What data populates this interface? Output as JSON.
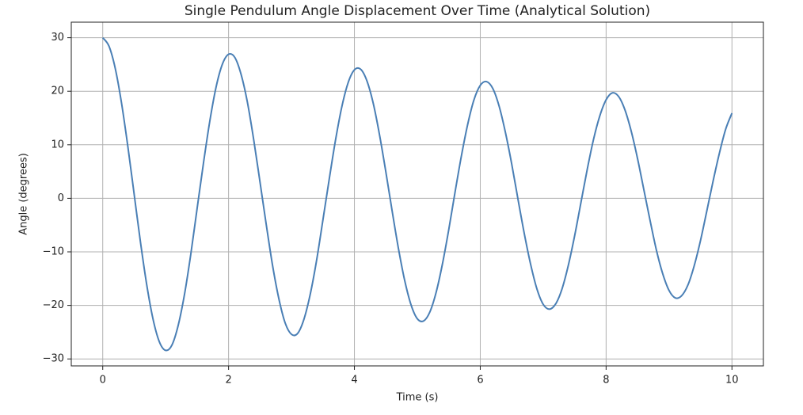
{
  "chart_data": {
    "type": "line",
    "title": "Single Pendulum Angle Displacement Over Time (Analytical Solution)",
    "x_label": "Time (s)",
    "y_label": "Angle (degrees)",
    "x": [
      0,
      0.1,
      0.2,
      0.3,
      0.4,
      0.5,
      0.6,
      0.7,
      0.8,
      0.9,
      1,
      1.1,
      1.2,
      1.3,
      1.4,
      1.5,
      1.6,
      1.7,
      1.8,
      1.9,
      2,
      2.1,
      2.2,
      2.3,
      2.4,
      2.5,
      2.6,
      2.7,
      2.8,
      2.9,
      3,
      3.1,
      3.2,
      3.3,
      3.4,
      3.5,
      3.6,
      3.7,
      3.8,
      3.9,
      4,
      4.1,
      4.2,
      4.3,
      4.4,
      4.5,
      4.6,
      4.7,
      4.8,
      4.9,
      5,
      5.1,
      5.2,
      5.3,
      5.4,
      5.5,
      5.6,
      5.7,
      5.8,
      5.9,
      6,
      6.1,
      6.2,
      6.3,
      6.4,
      6.5,
      6.6,
      6.7,
      6.8,
      6.9,
      7,
      7.1,
      7.2,
      7.3,
      7.4,
      7.5,
      7.6,
      7.7,
      7.8,
      7.9,
      8,
      8.1,
      8.2,
      8.3,
      8.4,
      8.5,
      8.6,
      8.7,
      8.8,
      8.9,
      9,
      9.1,
      9.2,
      9.3,
      9.4,
      9.5,
      9.6,
      9.7,
      9.8,
      9.9,
      10
    ],
    "series": [
      {
        "color": "#4a7fb5",
        "values": [
          30.0,
          28.4,
          24.2,
          17.7,
          9.6,
          0.7,
          -8.2,
          -16.2,
          -22.6,
          -26.8,
          -28.4,
          -27.4,
          -23.7,
          -17.9,
          -10.4,
          -1.9,
          6.5,
          14.3,
          20.7,
          25.0,
          26.9,
          26.3,
          23.1,
          17.9,
          10.9,
          3.0,
          -5.0,
          -12.6,
          -18.8,
          -23.3,
          -25.4,
          -25.2,
          -22.5,
          -17.8,
          -11.5,
          -4.0,
          3.6,
          10.9,
          17.1,
          21.6,
          24.0,
          24.1,
          21.9,
          17.7,
          11.8,
          4.9,
          -2.4,
          -9.4,
          -15.4,
          -19.9,
          -22.5,
          -22.9,
          -21.2,
          -17.5,
          -12.2,
          -5.8,
          1.2,
          7.9,
          13.8,
          18.4,
          21.1,
          21.8,
          20.5,
          17.2,
          12.3,
          6.4,
          -0.2,
          -6.6,
          -12.3,
          -16.9,
          -19.8,
          -20.7,
          -19.7,
          -16.9,
          -12.5,
          -7.0,
          -0.8,
          5.4,
          11.0,
          15.4,
          18.4,
          19.7,
          19.0,
          16.5,
          12.5,
          7.4,
          1.6,
          -4.2,
          -9.7,
          -14.1,
          -17.2,
          -18.6,
          -18.2,
          -16.2,
          -12.6,
          -7.9,
          -2.4,
          3.2,
          8.4,
          12.9,
          15.9
        ]
      }
    ],
    "xlim": [
      -0.5,
      10.5
    ],
    "xticks": [
      0,
      2,
      4,
      6,
      8,
      10
    ],
    "ylim": [
      -31.3,
      32.9
    ],
    "yticks": [
      {
        "value": -30,
        "label": "−30"
      },
      {
        "value": -20,
        "label": "−20"
      },
      {
        "value": -10,
        "label": "−10"
      },
      0,
      10,
      20,
      30
    ],
    "grid": true
  }
}
